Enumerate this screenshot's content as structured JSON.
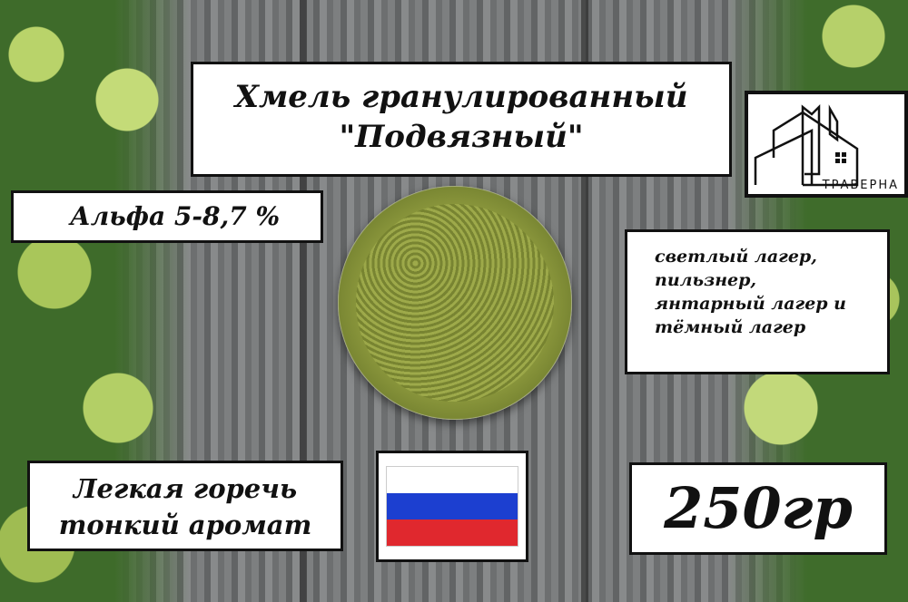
{
  "title": {
    "line1": "Хмель гранулированный",
    "line2": "\"Подвязный\""
  },
  "alpha": "Альфа  5-8,7 %",
  "styles": [
    "светлый лагер,",
    "пильзнер,",
    "янтарный лагер и",
    "тёмный лагер"
  ],
  "bitterness": {
    "line1": "Легкая горечь",
    "line2": "тонкий аромат"
  },
  "weight": "250гр",
  "flag": {
    "country": "Russia",
    "colors": [
      "#ffffff",
      "#1c3fd0",
      "#e0282e"
    ]
  },
  "logo": {
    "name": "ТРАВЕРНА",
    "icon": "house-logo-icon"
  }
}
